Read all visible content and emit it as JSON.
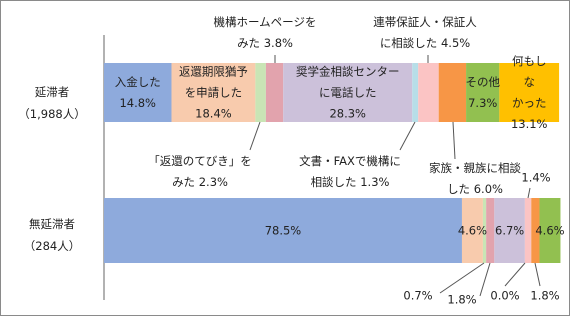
{
  "chart_data": {
    "type": "bar",
    "stacked": true,
    "orientation": "horizontal",
    "categories": [
      "延滞者",
      "無延滞者"
    ],
    "category_notes": [
      "（1,988人）",
      "（284人）"
    ],
    "xlim": [
      0,
      100
    ],
    "series": [
      {
        "name": "入金した",
        "color": "#8eaadc",
        "values": [
          14.8,
          78.5
        ],
        "value_labels": [
          "14.8%",
          "78.5%"
        ]
      },
      {
        "name": "返還期限猶予\nを申請した",
        "color": "#f8cbad",
        "values": [
          18.4,
          4.6
        ],
        "value_labels": [
          "18.4%",
          "4.6%"
        ]
      },
      {
        "name": "「返還のてびき」を\nみた",
        "color": "#c9e5b5",
        "values": [
          2.3,
          0.7
        ],
        "value_labels": [
          "2.3%",
          "0.7%"
        ]
      },
      {
        "name": "機構ホームページを\nみた",
        "color": "#e2a3ad",
        "values": [
          3.8,
          1.8
        ],
        "value_labels": [
          "3.8%",
          "1.8%"
        ]
      },
      {
        "name": "奨学金相談センター\nに電話した",
        "color": "#ccc1da",
        "values": [
          28.3,
          6.7
        ],
        "value_labels": [
          "28.3%",
          "6.7%"
        ]
      },
      {
        "name": "文書・FAXで機構に\n相談した",
        "color": "#b7dee8",
        "values": [
          1.3,
          0.0
        ],
        "value_labels": [
          "1.3%",
          "0.0%"
        ]
      },
      {
        "name": "連帯保証人・保証人\nに相談した",
        "color": "#fbc4c4",
        "values": [
          4.5,
          1.4
        ],
        "value_labels": [
          "4.5%",
          "1.4%"
        ]
      },
      {
        "name": "家族・親族に相談\nした",
        "color": "#f79646",
        "values": [
          6.0,
          1.8
        ],
        "value_labels": [
          "6.0%",
          "1.8%"
        ]
      },
      {
        "name": "その他",
        "color": "#92c050",
        "values": [
          7.3,
          4.6
        ],
        "value_labels": [
          "7.3%",
          "4.6%"
        ]
      },
      {
        "name": "何もしな\nかった",
        "color": "#ffc000",
        "values": [
          13.1,
          null
        ],
        "value_labels": [
          "13.1%",
          null
        ]
      }
    ]
  }
}
